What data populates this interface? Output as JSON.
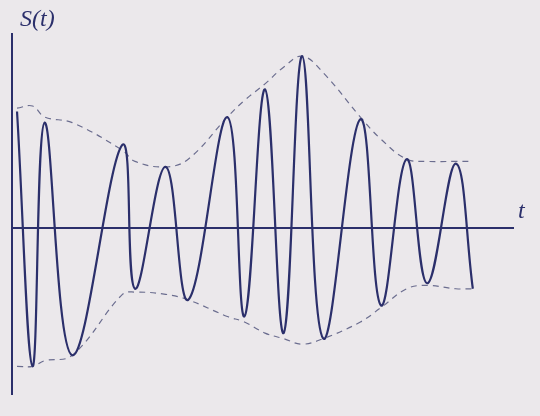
{
  "chart_data": {
    "type": "line",
    "y_label": "S(t)",
    "x_label": "t",
    "x": [
      0.1,
      0.41,
      0.65,
      1.2,
      2.2,
      2.45,
      3.06,
      3.51,
      4.29,
      4.63,
      5.04,
      5.41,
      5.78,
      6.2,
      6.94,
      7.35,
      7.86,
      8.27,
      8.84,
      9.18
    ],
    "series": [
      {
        "color": "#2b2f6b",
        "line_style": "solid",
        "values": [
          1.05,
          -1.25,
          0.95,
          -1.15,
          0.75,
          -0.55,
          0.55,
          -0.65,
          1.0,
          -0.8,
          1.25,
          -0.95,
          1.55,
          -1.0,
          0.98,
          -0.7,
          0.62,
          -0.5,
          0.58,
          -0.55
        ]
      },
      {
        "color": "#6b6d8f",
        "line_style": "dashed",
        "values": [
          1.08,
          1.1,
          1.0,
          0.95,
          0.7,
          0.6,
          0.55,
          0.62,
          1.0,
          1.15,
          1.3,
          1.45,
          1.55,
          1.4,
          1.0,
          0.8,
          0.62,
          0.6,
          0.6,
          0.6
        ]
      },
      {
        "color": "#6b6d8f",
        "line_style": "dashed",
        "values": [
          -1.25,
          -1.25,
          -1.2,
          -1.15,
          -0.6,
          -0.58,
          -0.6,
          -0.65,
          -0.8,
          -0.85,
          -0.95,
          -1.0,
          -1.05,
          -1.0,
          -0.85,
          -0.72,
          -0.55,
          -0.52,
          -0.55,
          -0.55
        ]
      }
    ],
    "xlim": [
      0,
      10
    ],
    "ylim": [
      -1.5,
      1.75
    ],
    "yticks": [
      0
    ],
    "grid": true,
    "tick_labels": false
  }
}
